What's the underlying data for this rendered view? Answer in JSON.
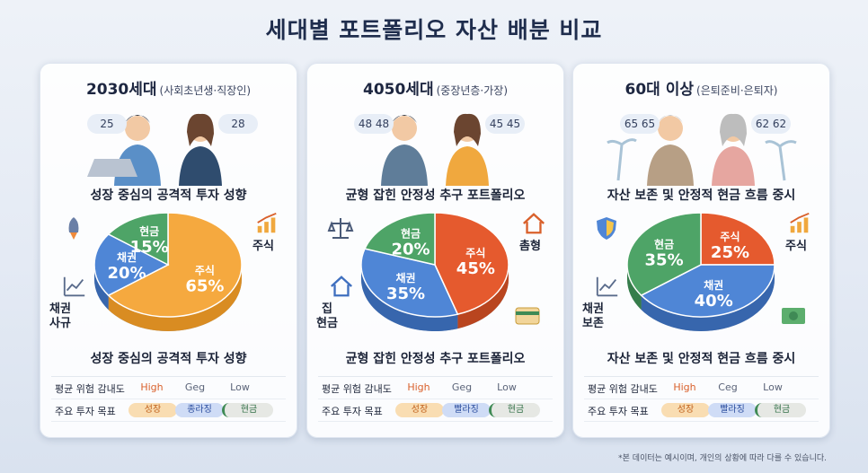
{
  "title": "세대별 포트폴리오 자산 배분 비교",
  "legend_rows": {
    "risk_label": "평균 위험 감내도",
    "goal_label": "주요 투자 목표"
  },
  "colors": {
    "stock": "#f5a93f",
    "bond": "#4f86d6",
    "cash": "#4ea467",
    "stock_dark": "#e55a2e"
  },
  "panels": [
    {
      "gen": "2030세대",
      "gen_sub": "(사회초년생·직장인)",
      "ages": [
        "25",
        "28"
      ],
      "tagline": "성장 중심의 공격적 투자 성향",
      "bottom_tagline": "성장 중심의 공격적 투자 성향",
      "side_left": "채권\n사규",
      "side_right": "주식",
      "slices": [
        {
          "label": "주식",
          "value": 65
        },
        {
          "label": "채권",
          "value": 20
        },
        {
          "label": "현금",
          "value": 15
        }
      ],
      "risk": [
        "High",
        "Geg",
        "Low"
      ],
      "goals": [
        "성장",
        "종라징",
        "현금"
      ]
    },
    {
      "gen": "4050세대",
      "gen_sub": "(중장년층·가장)",
      "ages": [
        "48 48",
        "45 45"
      ],
      "tagline": "균형 잡힌 안정성 추구 포트폴리오",
      "bottom_tagline": "균형 잡힌 안정성 추구 포트폴리오",
      "side_left": "집\n현금",
      "side_right": "촘형",
      "slices": [
        {
          "label": "주식",
          "value": 45
        },
        {
          "label": "채권",
          "value": 35
        },
        {
          "label": "현금",
          "value": 20
        }
      ],
      "risk": [
        "High",
        "Geg",
        "Low"
      ],
      "goals": [
        "성장",
        "빨라징",
        "현금"
      ]
    },
    {
      "gen": "60대 이상",
      "gen_sub": "(은퇴준비·은퇴자)",
      "ages": [
        "65 65",
        "62 62"
      ],
      "tagline": "자산 보존 및 안정적 현금 흐름 중시",
      "bottom_tagline": "자산 보존 및 안정적 현금 흐름 중시",
      "side_left": "채권\n보존",
      "side_right": "주식",
      "slices": [
        {
          "label": "주식",
          "value": 25
        },
        {
          "label": "채권",
          "value": 40
        },
        {
          "label": "현금",
          "value": 35
        }
      ],
      "risk": [
        "High",
        "Ceg",
        "Low"
      ],
      "goals": [
        "성장",
        "빨라징",
        "현금"
      ]
    }
  ],
  "footnote": "*본 데이터는 예시이며, 개인의 상황에 따라 다를 수 있습니다."
}
